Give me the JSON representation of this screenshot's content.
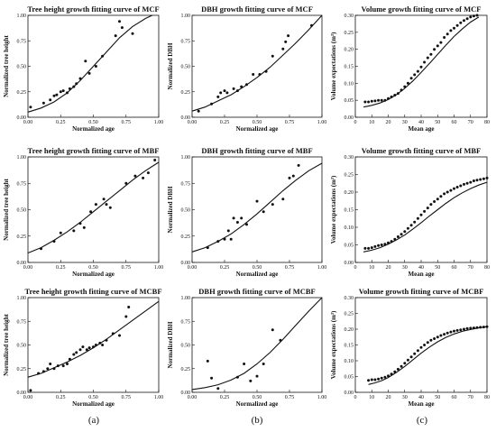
{
  "sublabels": [
    "(a)",
    "(b)",
    "(c)"
  ],
  "chart_data": [
    {
      "type": "scatter",
      "title": "Tree height growth fitting curve of MCF",
      "xlabel": "Normalized age",
      "ylabel": "Normalized tree height",
      "xlim": [
        0,
        1
      ],
      "ylim": [
        0,
        1
      ],
      "xticks": [
        "0.00",
        "0.25",
        "0.50",
        "0.75",
        "1.00"
      ],
      "yticks": [
        "0.00",
        "0.25",
        "0.50",
        "0.75",
        "1.00"
      ],
      "series": [
        {
          "kind": "points",
          "x": [
            0.02,
            0.12,
            0.17,
            0.2,
            0.22,
            0.25,
            0.27,
            0.3,
            0.32,
            0.35,
            0.37,
            0.4,
            0.44,
            0.47,
            0.52,
            0.57,
            0.67,
            0.7,
            0.72,
            0.8
          ],
          "y": [
            0.1,
            0.14,
            0.17,
            0.21,
            0.22,
            0.25,
            0.26,
            0.24,
            0.28,
            0.3,
            0.33,
            0.38,
            0.55,
            0.43,
            0.5,
            0.6,
            0.8,
            0.94,
            0.88,
            0.82
          ]
        },
        {
          "kind": "curve",
          "x": [
            0,
            0.1,
            0.2,
            0.3,
            0.4,
            0.5,
            0.6,
            0.7,
            0.8,
            0.9,
            0.95
          ],
          "y": [
            0.05,
            0.09,
            0.15,
            0.24,
            0.36,
            0.5,
            0.64,
            0.78,
            0.89,
            0.97,
            1.0
          ]
        }
      ]
    },
    {
      "type": "scatter",
      "title": "DBH growth fitting curve of MCF",
      "xlabel": "Normalized age",
      "ylabel": "Normalized DBH",
      "xlim": [
        0,
        1
      ],
      "ylim": [
        0,
        1
      ],
      "xticks": [
        "0.00",
        "0.25",
        "0.50",
        "0.75",
        "1.00"
      ],
      "yticks": [
        "0.00",
        "0.25",
        "0.50",
        "0.75",
        "1.00"
      ],
      "series": [
        {
          "kind": "points",
          "x": [
            0.05,
            0.15,
            0.2,
            0.22,
            0.25,
            0.27,
            0.32,
            0.35,
            0.38,
            0.42,
            0.47,
            0.52,
            0.57,
            0.62,
            0.7,
            0.72,
            0.74,
            0.92
          ],
          "y": [
            0.06,
            0.13,
            0.2,
            0.24,
            0.26,
            0.24,
            0.28,
            0.26,
            0.3,
            0.32,
            0.42,
            0.42,
            0.45,
            0.6,
            0.67,
            0.74,
            0.8,
            0.9
          ]
        },
        {
          "kind": "curve",
          "x": [
            0,
            0.1,
            0.2,
            0.3,
            0.4,
            0.5,
            0.6,
            0.7,
            0.8,
            0.9,
            1.0
          ],
          "y": [
            0.06,
            0.1,
            0.16,
            0.22,
            0.3,
            0.39,
            0.49,
            0.61,
            0.73,
            0.86,
            1.0
          ]
        }
      ]
    },
    {
      "type": "scatter",
      "title": "Volume growth fitting curve of MCF",
      "xlabel": "Mean age",
      "ylabel": "Volume expectations (m³)",
      "xlim": [
        0,
        80
      ],
      "ylim": [
        0,
        0.3
      ],
      "xticks": [
        "0",
        "10",
        "20",
        "30",
        "40",
        "50",
        "60",
        "70",
        "80"
      ],
      "yticks": [
        "0.00",
        "0.05",
        "0.10",
        "0.15",
        "0.20",
        "0.25",
        "0.30"
      ],
      "series": [
        {
          "kind": "points",
          "x": [
            6,
            8,
            10,
            12,
            14,
            16,
            18,
            20,
            22,
            24,
            26,
            28,
            30,
            32,
            34,
            36,
            38,
            40,
            42,
            44,
            46,
            48,
            50,
            52,
            54,
            56,
            58,
            60,
            62,
            64,
            66,
            68,
            70,
            72,
            74
          ],
          "y": [
            0.045,
            0.045,
            0.047,
            0.048,
            0.05,
            0.05,
            0.05,
            0.055,
            0.06,
            0.065,
            0.07,
            0.08,
            0.09,
            0.1,
            0.115,
            0.125,
            0.135,
            0.148,
            0.162,
            0.175,
            0.185,
            0.2,
            0.21,
            0.22,
            0.235,
            0.245,
            0.255,
            0.262,
            0.27,
            0.278,
            0.285,
            0.29,
            0.295,
            0.298,
            0.3
          ]
        },
        {
          "kind": "curve",
          "x": [
            5,
            10,
            15,
            20,
            25,
            30,
            35,
            40,
            45,
            50,
            55,
            60,
            65,
            70,
            75
          ],
          "y": [
            0.03,
            0.035,
            0.042,
            0.052,
            0.066,
            0.085,
            0.107,
            0.132,
            0.158,
            0.185,
            0.212,
            0.238,
            0.26,
            0.28,
            0.295
          ]
        }
      ]
    },
    {
      "type": "scatter",
      "title": "Tree height growth fitting curve of MBF",
      "xlabel": "Normalized age",
      "ylabel": "Normalized tree height",
      "xlim": [
        0,
        1
      ],
      "ylim": [
        0,
        1
      ],
      "xticks": [
        "0.00",
        "0.25",
        "0.50",
        "0.75",
        "1.00"
      ],
      "yticks": [
        "0.00",
        "0.25",
        "0.50",
        "0.75",
        "1.00"
      ],
      "series": [
        {
          "kind": "points",
          "x": [
            0.1,
            0.2,
            0.25,
            0.35,
            0.4,
            0.43,
            0.48,
            0.52,
            0.58,
            0.6,
            0.63,
            0.75,
            0.82,
            0.88,
            0.92,
            0.97
          ],
          "y": [
            0.13,
            0.2,
            0.28,
            0.3,
            0.37,
            0.33,
            0.48,
            0.55,
            0.6,
            0.55,
            0.52,
            0.75,
            0.82,
            0.8,
            0.85,
            0.97
          ]
        },
        {
          "kind": "curve",
          "x": [
            0,
            0.1,
            0.2,
            0.3,
            0.4,
            0.5,
            0.6,
            0.7,
            0.8,
            0.9,
            1.0
          ],
          "y": [
            0.09,
            0.14,
            0.21,
            0.29,
            0.38,
            0.48,
            0.58,
            0.68,
            0.78,
            0.87,
            0.95
          ]
        }
      ]
    },
    {
      "type": "scatter",
      "title": "DBH growth fitting curve of MBF",
      "xlabel": "Normalized age",
      "ylabel": "Normalized DBH",
      "xlim": [
        0,
        1
      ],
      "ylim": [
        0,
        1
      ],
      "xticks": [
        "0.00",
        "0.25",
        "0.50",
        "0.75",
        "1.00"
      ],
      "yticks": [
        "0.00",
        "0.25",
        "0.50",
        "0.75",
        "1.00"
      ],
      "series": [
        {
          "kind": "points",
          "x": [
            0.12,
            0.2,
            0.25,
            0.28,
            0.3,
            0.32,
            0.35,
            0.38,
            0.42,
            0.5,
            0.55,
            0.62,
            0.7,
            0.75,
            0.78,
            0.82
          ],
          "y": [
            0.14,
            0.2,
            0.22,
            0.3,
            0.22,
            0.42,
            0.38,
            0.42,
            0.36,
            0.58,
            0.48,
            0.55,
            0.6,
            0.8,
            0.82,
            0.92
          ]
        },
        {
          "kind": "curve",
          "x": [
            0,
            0.1,
            0.2,
            0.3,
            0.4,
            0.5,
            0.6,
            0.7,
            0.8,
            0.9,
            1.0
          ],
          "y": [
            0.1,
            0.14,
            0.2,
            0.27,
            0.36,
            0.46,
            0.57,
            0.68,
            0.78,
            0.87,
            0.94
          ]
        }
      ]
    },
    {
      "type": "scatter",
      "title": "Volume growth fitting curve of MBF",
      "xlabel": "Mean age",
      "ylabel": "Volume expectations (m³)",
      "xlim": [
        0,
        80
      ],
      "ylim": [
        0,
        0.3
      ],
      "xticks": [
        "0",
        "10",
        "20",
        "30",
        "40",
        "50",
        "60",
        "70",
        "80"
      ],
      "yticks": [
        "0.00",
        "0.05",
        "0.10",
        "0.15",
        "0.20",
        "0.25",
        "0.30"
      ],
      "series": [
        {
          "kind": "points",
          "x": [
            6,
            8,
            10,
            12,
            14,
            16,
            18,
            20,
            22,
            24,
            26,
            28,
            30,
            32,
            34,
            36,
            38,
            40,
            42,
            44,
            46,
            48,
            50,
            52,
            54,
            56,
            58,
            60,
            62,
            64,
            66,
            68,
            70,
            72,
            74,
            76,
            78,
            80
          ],
          "y": [
            0.04,
            0.04,
            0.042,
            0.045,
            0.048,
            0.05,
            0.052,
            0.056,
            0.06,
            0.066,
            0.073,
            0.08,
            0.088,
            0.097,
            0.106,
            0.115,
            0.125,
            0.135,
            0.145,
            0.155,
            0.165,
            0.173,
            0.18,
            0.188,
            0.195,
            0.2,
            0.205,
            0.21,
            0.214,
            0.218,
            0.222,
            0.225,
            0.228,
            0.232,
            0.234,
            0.236,
            0.238,
            0.24
          ]
        },
        {
          "kind": "curve",
          "x": [
            5,
            10,
            15,
            20,
            25,
            30,
            35,
            40,
            45,
            50,
            55,
            60,
            65,
            70,
            75,
            80
          ],
          "y": [
            0.03,
            0.035,
            0.042,
            0.052,
            0.064,
            0.078,
            0.095,
            0.113,
            0.132,
            0.15,
            0.168,
            0.184,
            0.198,
            0.21,
            0.22,
            0.228
          ]
        }
      ]
    },
    {
      "type": "scatter",
      "title": "Tree height growth fitting curve of MCBF",
      "xlabel": "Normalized age",
      "ylabel": "Normalized tree height",
      "xlim": [
        0,
        1
      ],
      "ylim": [
        0,
        1
      ],
      "xticks": [
        "0.00",
        "0.25",
        "0.50",
        "0.75",
        "1.00"
      ],
      "yticks": [
        "0.00",
        "0.25",
        "0.50",
        "0.75",
        "1.00"
      ],
      "series": [
        {
          "kind": "points",
          "x": [
            0.02,
            0.08,
            0.12,
            0.15,
            0.17,
            0.2,
            0.23,
            0.27,
            0.3,
            0.32,
            0.35,
            0.37,
            0.4,
            0.42,
            0.45,
            0.47,
            0.5,
            0.52,
            0.55,
            0.57,
            0.6,
            0.65,
            0.7,
            0.75,
            0.77
          ],
          "y": [
            0.02,
            0.2,
            0.22,
            0.25,
            0.3,
            0.25,
            0.28,
            0.28,
            0.3,
            0.35,
            0.4,
            0.42,
            0.45,
            0.48,
            0.45,
            0.47,
            0.48,
            0.5,
            0.52,
            0.5,
            0.55,
            0.62,
            0.6,
            0.8,
            0.9
          ]
        },
        {
          "kind": "curve",
          "x": [
            0,
            0.1,
            0.2,
            0.3,
            0.4,
            0.5,
            0.6,
            0.7,
            0.8,
            0.9,
            1.0
          ],
          "y": [
            0.16,
            0.2,
            0.26,
            0.32,
            0.39,
            0.47,
            0.56,
            0.66,
            0.76,
            0.86,
            0.96
          ]
        }
      ]
    },
    {
      "type": "scatter",
      "title": "DBH growth fitting curve of MCBF",
      "xlabel": "Normalized age",
      "ylabel": "Normalized DBH",
      "xlim": [
        0,
        1
      ],
      "ylim": [
        0,
        1
      ],
      "xticks": [
        "0.00",
        "0.25",
        "0.50",
        "0.75",
        "1.00"
      ],
      "yticks": [
        "0.00",
        "0.25",
        "0.50",
        "0.75",
        "1.00"
      ],
      "series": [
        {
          "kind": "points",
          "x": [
            0.12,
            0.15,
            0.2,
            0.35,
            0.4,
            0.45,
            0.5,
            0.55,
            0.62,
            0.68
          ],
          "y": [
            0.33,
            0.15,
            0.04,
            0.16,
            0.3,
            0.12,
            0.17,
            0.3,
            0.66,
            0.55
          ]
        },
        {
          "kind": "curve",
          "x": [
            0,
            0.1,
            0.2,
            0.3,
            0.4,
            0.5,
            0.6,
            0.7,
            0.8,
            0.9,
            1.0
          ],
          "y": [
            0.03,
            0.05,
            0.08,
            0.13,
            0.2,
            0.3,
            0.42,
            0.56,
            0.71,
            0.86,
            1.0
          ]
        }
      ]
    },
    {
      "type": "scatter",
      "title": "Volume growth fitting curve of MCBF",
      "xlabel": "Mean age",
      "ylabel": "Volume expectations (m³)",
      "xlim": [
        0,
        80
      ],
      "ylim": [
        0,
        0.3
      ],
      "xticks": [
        "0",
        "10",
        "20",
        "30",
        "40",
        "50",
        "60",
        "70",
        "80"
      ],
      "yticks": [
        "0.00",
        "0.05",
        "0.10",
        "0.15",
        "0.20",
        "0.25",
        "0.30"
      ],
      "series": [
        {
          "kind": "points",
          "x": [
            8,
            10,
            12,
            14,
            16,
            18,
            20,
            22,
            24,
            26,
            28,
            30,
            32,
            34,
            36,
            38,
            40,
            42,
            44,
            46,
            48,
            50,
            52,
            54,
            56,
            58,
            60,
            62,
            64,
            66,
            68,
            70,
            72,
            74,
            76,
            78,
            80
          ],
          "y": [
            0.038,
            0.04,
            0.04,
            0.042,
            0.045,
            0.048,
            0.052,
            0.058,
            0.065,
            0.073,
            0.082,
            0.092,
            0.102,
            0.112,
            0.122,
            0.132,
            0.142,
            0.15,
            0.158,
            0.165,
            0.17,
            0.175,
            0.18,
            0.184,
            0.188,
            0.191,
            0.194,
            0.196,
            0.198,
            0.2,
            0.202,
            0.203,
            0.204,
            0.205,
            0.206,
            0.207,
            0.208
          ]
        },
        {
          "kind": "curve",
          "x": [
            8,
            12,
            16,
            20,
            25,
            30,
            35,
            40,
            45,
            50,
            55,
            60,
            65,
            70,
            75,
            80
          ],
          "y": [
            0.025,
            0.03,
            0.037,
            0.047,
            0.063,
            0.082,
            0.103,
            0.124,
            0.143,
            0.16,
            0.174,
            0.185,
            0.193,
            0.199,
            0.204,
            0.208
          ]
        }
      ]
    }
  ]
}
